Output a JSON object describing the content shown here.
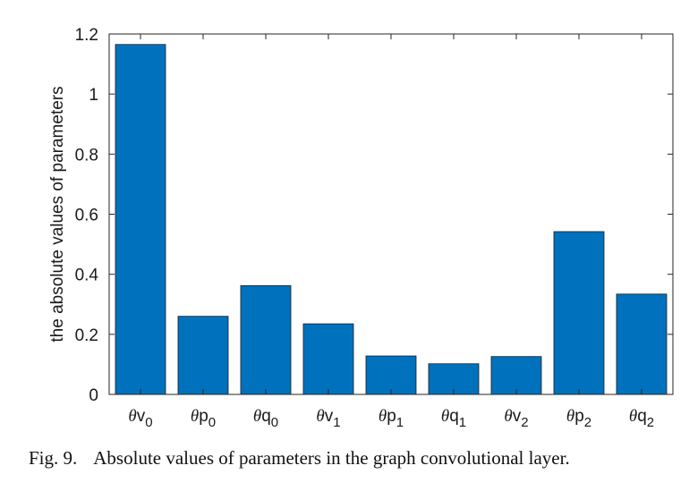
{
  "chart_data": {
    "type": "bar",
    "categories": [
      {
        "greek": "θ",
        "letter": "v",
        "sub": "0"
      },
      {
        "greek": "θ",
        "letter": "p",
        "sub": "0"
      },
      {
        "greek": "θ",
        "letter": "q",
        "sub": "0"
      },
      {
        "greek": "θ",
        "letter": "v",
        "sub": "1"
      },
      {
        "greek": "θ",
        "letter": "p",
        "sub": "1"
      },
      {
        "greek": "θ",
        "letter": "q",
        "sub": "1"
      },
      {
        "greek": "θ",
        "letter": "v",
        "sub": "2"
      },
      {
        "greek": "θ",
        "letter": "p",
        "sub": "2"
      },
      {
        "greek": "θ",
        "letter": "q",
        "sub": "2"
      }
    ],
    "values": [
      1.165,
      0.26,
      0.362,
      0.235,
      0.128,
      0.102,
      0.126,
      0.542,
      0.334
    ],
    "ylabel": "the absolute values of parameters",
    "xlabel": "",
    "ylim": [
      0,
      1.2
    ],
    "yticks": [
      "0",
      "0.2",
      "0.4",
      "0.6",
      "0.8",
      "1",
      "1.2"
    ],
    "grid": false,
    "bar_color": "#0072bd"
  },
  "caption": {
    "label": "Fig. 9.",
    "text": "Absolute values of parameters in the graph convolutional layer."
  }
}
